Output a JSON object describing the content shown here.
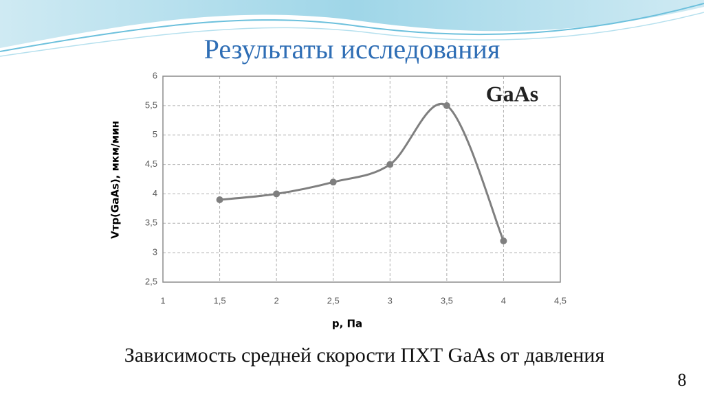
{
  "slide": {
    "title": "Результаты исследования",
    "caption": "Зависимость средней скорости ПХТ GaAs от давления",
    "page_number": "8"
  },
  "chart_data": {
    "type": "line",
    "annotation": "GaAs",
    "x_label": "p, Па",
    "y_label": "Vтр(GaAs), мкм/мин",
    "x": [
      1.5,
      2,
      2.5,
      3,
      3.5,
      4
    ],
    "series": [
      {
        "name": "Vтр(GaAs)",
        "color": "#7f7f7f",
        "values": [
          3.9,
          4.0,
          4.2,
          4.5,
          5.5,
          3.2
        ]
      }
    ],
    "smooth": true,
    "grid": true,
    "xlim": [
      1,
      4.5
    ],
    "xticks": [
      1,
      {
        "value": 1.5,
        "label": "1,5"
      },
      2,
      {
        "value": 2.5,
        "label": "2,5"
      },
      3,
      {
        "value": 3.5,
        "label": "3,5"
      },
      4,
      {
        "value": 4.5,
        "label": "4,5"
      }
    ],
    "ylim": [
      2.5,
      6
    ],
    "yticks": [
      {
        "value": 2.5,
        "label": "2,5"
      },
      3,
      {
        "value": 3.5,
        "label": "3,5"
      },
      4,
      {
        "value": 4.5,
        "label": "4,5"
      },
      5,
      {
        "value": 5.5,
        "label": "5,5"
      },
      6
    ]
  }
}
